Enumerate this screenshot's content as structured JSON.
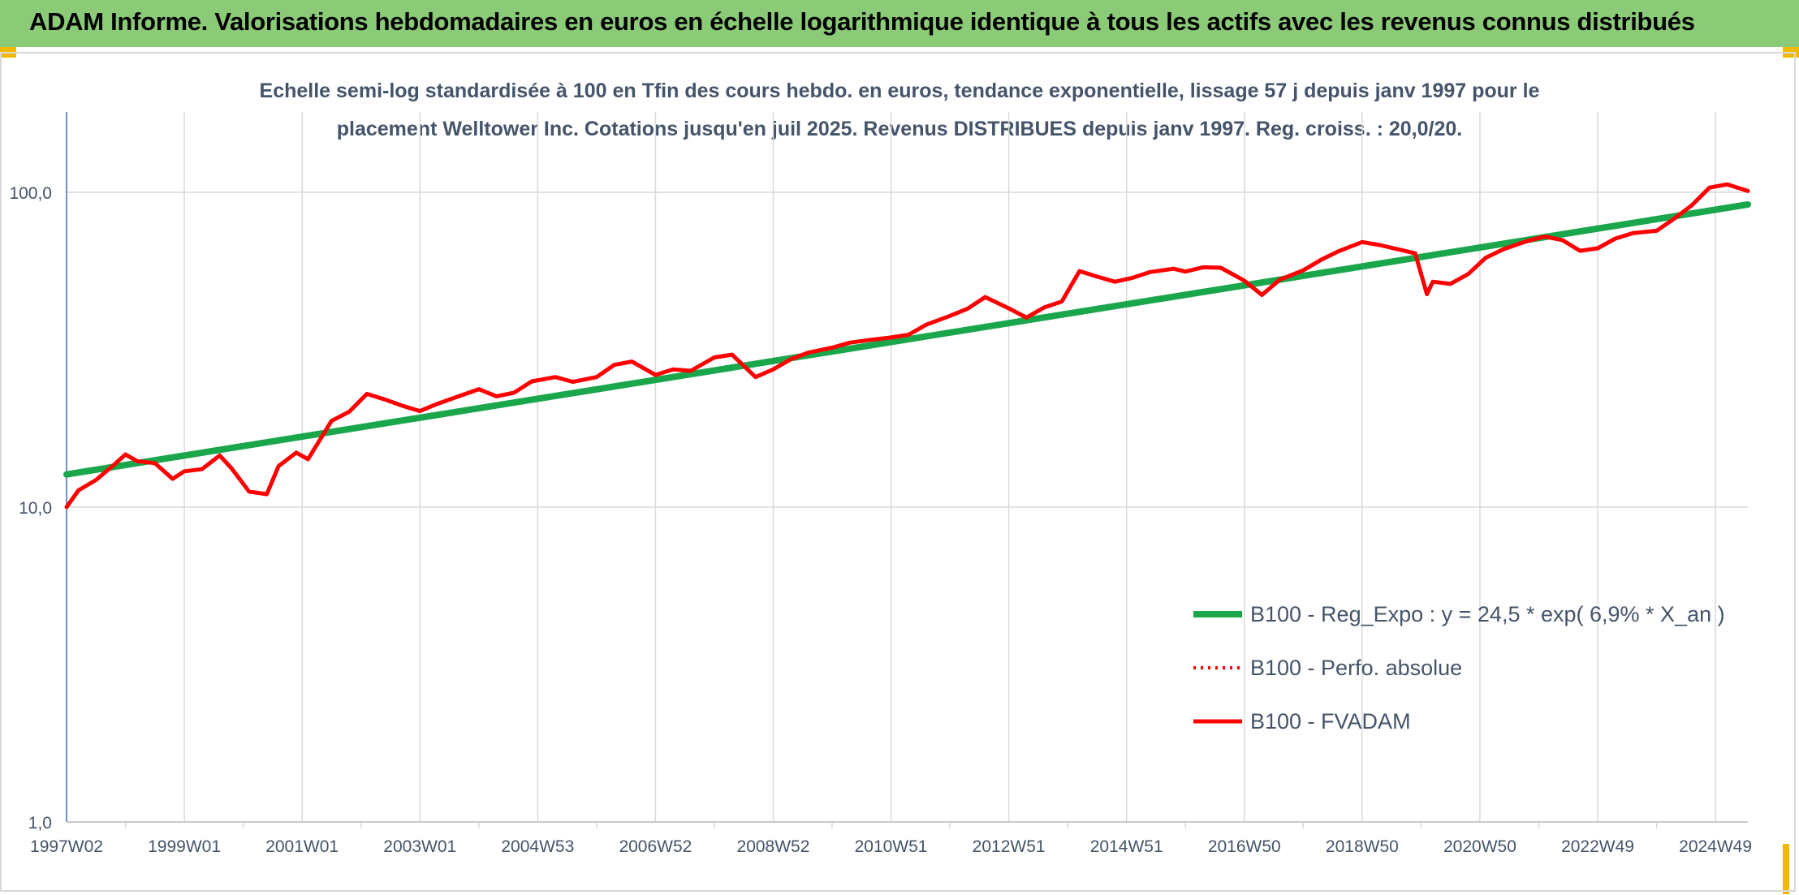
{
  "header": {
    "title": "ADAM Informe. Valorisations hebdomadaires en euros en échelle logarithmique identique à tous les actifs avec les revenus connus distribués"
  },
  "colors": {
    "banner": "#8bcb77",
    "trend": "#1aa64a",
    "price": "#ff0000",
    "axis_text": "#44546a",
    "grid": "#d9d9d9"
  },
  "chart_data": {
    "type": "line",
    "title_lines": [
      "Echelle semi-log standardisée à 100 en Tfin des cours hebdo. en euros, tendance exponentielle, lissage 57 j depuis janv 1997 pour le",
      "placement Welltower Inc. Cotations jusqu'en juil 2025. Revenus DISTRIBUES depuis janv 1997. Reg. croiss. : 20,0/20."
    ],
    "y_scale": "log",
    "ylim": [
      1,
      180
    ],
    "y_ticks": [
      1,
      10,
      100
    ],
    "y_tick_labels": [
      "1,0",
      "10,0",
      "100,0"
    ],
    "xlim": [
      1997.0,
      2025.55
    ],
    "x_ticks": [
      {
        "x": 1997.0,
        "label": "1997W02"
      },
      {
        "x": 1999.0,
        "label": "1999W01"
      },
      {
        "x": 2001.0,
        "label": "2001W01"
      },
      {
        "x": 2003.0,
        "label": "2003W01"
      },
      {
        "x": 2005.0,
        "label": "2004W53"
      },
      {
        "x": 2007.0,
        "label": "2006W52"
      },
      {
        "x": 2009.0,
        "label": "2008W52"
      },
      {
        "x": 2011.0,
        "label": "2010W51"
      },
      {
        "x": 2013.0,
        "label": "2012W51"
      },
      {
        "x": 2015.0,
        "label": "2014W51"
      },
      {
        "x": 2017.0,
        "label": "2016W50"
      },
      {
        "x": 2019.0,
        "label": "2018W50"
      },
      {
        "x": 2021.0,
        "label": "2020W50"
      },
      {
        "x": 2023.0,
        "label": "2022W49"
      },
      {
        "x": 2025.0,
        "label": "2024W49"
      }
    ],
    "grid": true,
    "legend_position": "bottom-right",
    "series": [
      {
        "name": "B100 - Reg_Expo : y = 24,5 * exp( 6,9% *  X_an )",
        "style": "solid-thick",
        "color": "#1aa64a",
        "x": [
          1997.0,
          2025.55
        ],
        "y": [
          12.7,
          91.5
        ]
      },
      {
        "name": "B100 - Perfo. absolue",
        "style": "dotted",
        "color": "#ff0000",
        "x": [],
        "y": []
      },
      {
        "name": "B100 - FVADAM",
        "style": "solid",
        "color": "#ff0000",
        "x": [
          1997.0,
          1997.2,
          1997.5,
          1997.8,
          1998.0,
          1998.2,
          1998.5,
          1998.8,
          1999.0,
          1999.3,
          1999.6,
          1999.8,
          2000.1,
          2000.4,
          2000.6,
          2000.9,
          2001.1,
          2001.5,
          2001.8,
          2002.1,
          2002.4,
          2002.7,
          2003.0,
          2003.3,
          2003.6,
          2004.0,
          2004.3,
          2004.6,
          2004.9,
          2005.3,
          2005.6,
          2006.0,
          2006.3,
          2006.6,
          2007.0,
          2007.3,
          2007.6,
          2008.0,
          2008.3,
          2008.7,
          2009.0,
          2009.3,
          2009.6,
          2010.0,
          2010.3,
          2010.6,
          2011.0,
          2011.3,
          2011.6,
          2012.0,
          2012.3,
          2012.6,
          2013.0,
          2013.3,
          2013.6,
          2013.9,
          2014.2,
          2014.5,
          2014.8,
          2015.1,
          2015.4,
          2015.8,
          2016.0,
          2016.3,
          2016.6,
          2017.0,
          2017.3,
          2017.6,
          2018.0,
          2018.3,
          2018.6,
          2019.0,
          2019.3,
          2019.6,
          2019.9,
          2020.1,
          2020.2,
          2020.5,
          2020.8,
          2021.1,
          2021.4,
          2021.8,
          2022.1,
          2022.4,
          2022.7,
          2023.0,
          2023.3,
          2023.6,
          2024.0,
          2024.3,
          2024.6,
          2024.9,
          2025.2,
          2025.55
        ],
        "y": [
          10.0,
          11.3,
          12.2,
          13.6,
          14.7,
          14.0,
          13.8,
          12.3,
          13.0,
          13.2,
          14.6,
          13.3,
          11.2,
          11.0,
          13.5,
          14.9,
          14.2,
          18.8,
          20.1,
          22.9,
          22.0,
          21.0,
          20.2,
          21.3,
          22.3,
          23.7,
          22.5,
          23.1,
          25.1,
          25.9,
          25.0,
          25.9,
          28.3,
          29.0,
          26.3,
          27.4,
          27.1,
          29.9,
          30.5,
          25.9,
          27.4,
          29.5,
          31.0,
          32.1,
          33.3,
          33.9,
          34.6,
          35.3,
          38.0,
          40.5,
          42.7,
          46.5,
          42.8,
          40.0,
          43.1,
          45.0,
          56.2,
          54.0,
          52.0,
          53.5,
          55.8,
          57.2,
          56.0,
          57.8,
          57.6,
          52.4,
          47.2,
          52.8,
          56.5,
          61.0,
          65.0,
          69.5,
          68.0,
          66.0,
          64.0,
          47.5,
          52.0,
          51.2,
          55.0,
          62.0,
          66.0,
          70.0,
          72.4,
          70.5,
          65.2,
          66.4,
          71.3,
          74.2,
          75.5,
          82.5,
          91.0,
          103.5,
          106.0,
          101.0
        ]
      }
    ]
  }
}
